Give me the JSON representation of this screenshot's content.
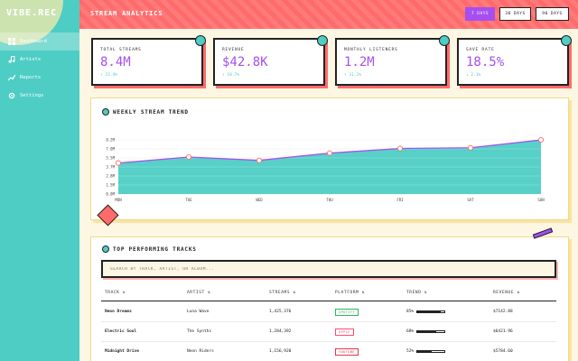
{
  "app": {
    "logo": "VIBE.REC",
    "title": "STREAM ANALYTICS"
  },
  "nav": [
    {
      "label": "Dashboard",
      "icon": "grid-icon",
      "active": true
    },
    {
      "label": "Artists",
      "icon": "music-icon",
      "active": false
    },
    {
      "label": "Reports",
      "icon": "chart-icon",
      "active": false
    },
    {
      "label": "Settings",
      "icon": "gear-icon",
      "active": false
    }
  ],
  "range": [
    {
      "label": "7 DAYS",
      "active": true
    },
    {
      "label": "30 DAYS",
      "active": false
    },
    {
      "label": "90 DAYS",
      "active": false
    }
  ],
  "metrics": [
    {
      "label": "TOTAL STREAMS",
      "value": "8.4M",
      "change": "↑ 23.4%"
    },
    {
      "label": "REVENUE",
      "value": "$42.8K",
      "change": "↑ 18.7%"
    },
    {
      "label": "MONTHLY LISTENERS",
      "value": "1.2M",
      "change": "↑ 31.2%"
    },
    {
      "label": "SAVE RATE",
      "value": "18.5%",
      "change": "↓ 2.1%"
    }
  ],
  "trend": {
    "title": "WEEKLY STREAM TREND",
    "chart_data": {
      "type": "area",
      "categories": [
        "MON",
        "TUE",
        "WED",
        "THU",
        "FRI",
        "SAT",
        "SUN"
      ],
      "values": [
        4.7,
        5.6,
        5.1,
        6.2,
        6.9,
        7.0,
        8.2
      ],
      "yticks": [
        "0.0M",
        "1.5M",
        "2.8M",
        "3.7M",
        "5.5M",
        "7.0M",
        "8.2M"
      ],
      "ylim": [
        0,
        8.2
      ],
      "colors": {
        "fill": "#4ecdc4",
        "line": "#a64ff0",
        "point": "#ff6b6b"
      }
    }
  },
  "tracks": {
    "title": "TOP PERFORMING TRACKS",
    "search_placeholder": "SEARCH BY TRACK, ARTIST, OR ALBUM...",
    "columns": [
      "TRACK ⇅",
      "ARTIST ⇅",
      "STREAMS ⇅",
      "PLATFORM ⇅",
      "TREND ⇅",
      "REVENUE ⇅"
    ],
    "rows": [
      {
        "track": "Neon Dreams",
        "artist": "Luna Wave",
        "streams": "1,425,376",
        "platform": "SPOTIFY",
        "platform_color": "#2eb85c",
        "trend": "85%",
        "trend_value": 0.85,
        "revenue": "$7142.88"
      },
      {
        "track": "Electric Soul",
        "artist": "The Synths",
        "streams": "1,284,392",
        "platform": "APPLE",
        "platform_color": "#ff4d6d",
        "trend": "68%",
        "trend_value": 0.68,
        "revenue": "$6421.96"
      },
      {
        "track": "Midnight Drive",
        "artist": "Neon Riders",
        "streams": "1,156,920",
        "platform": "YOUTUBE",
        "platform_color": "#e63946",
        "trend": "52%",
        "trend_value": 0.52,
        "revenue": "$5784.60"
      }
    ]
  }
}
